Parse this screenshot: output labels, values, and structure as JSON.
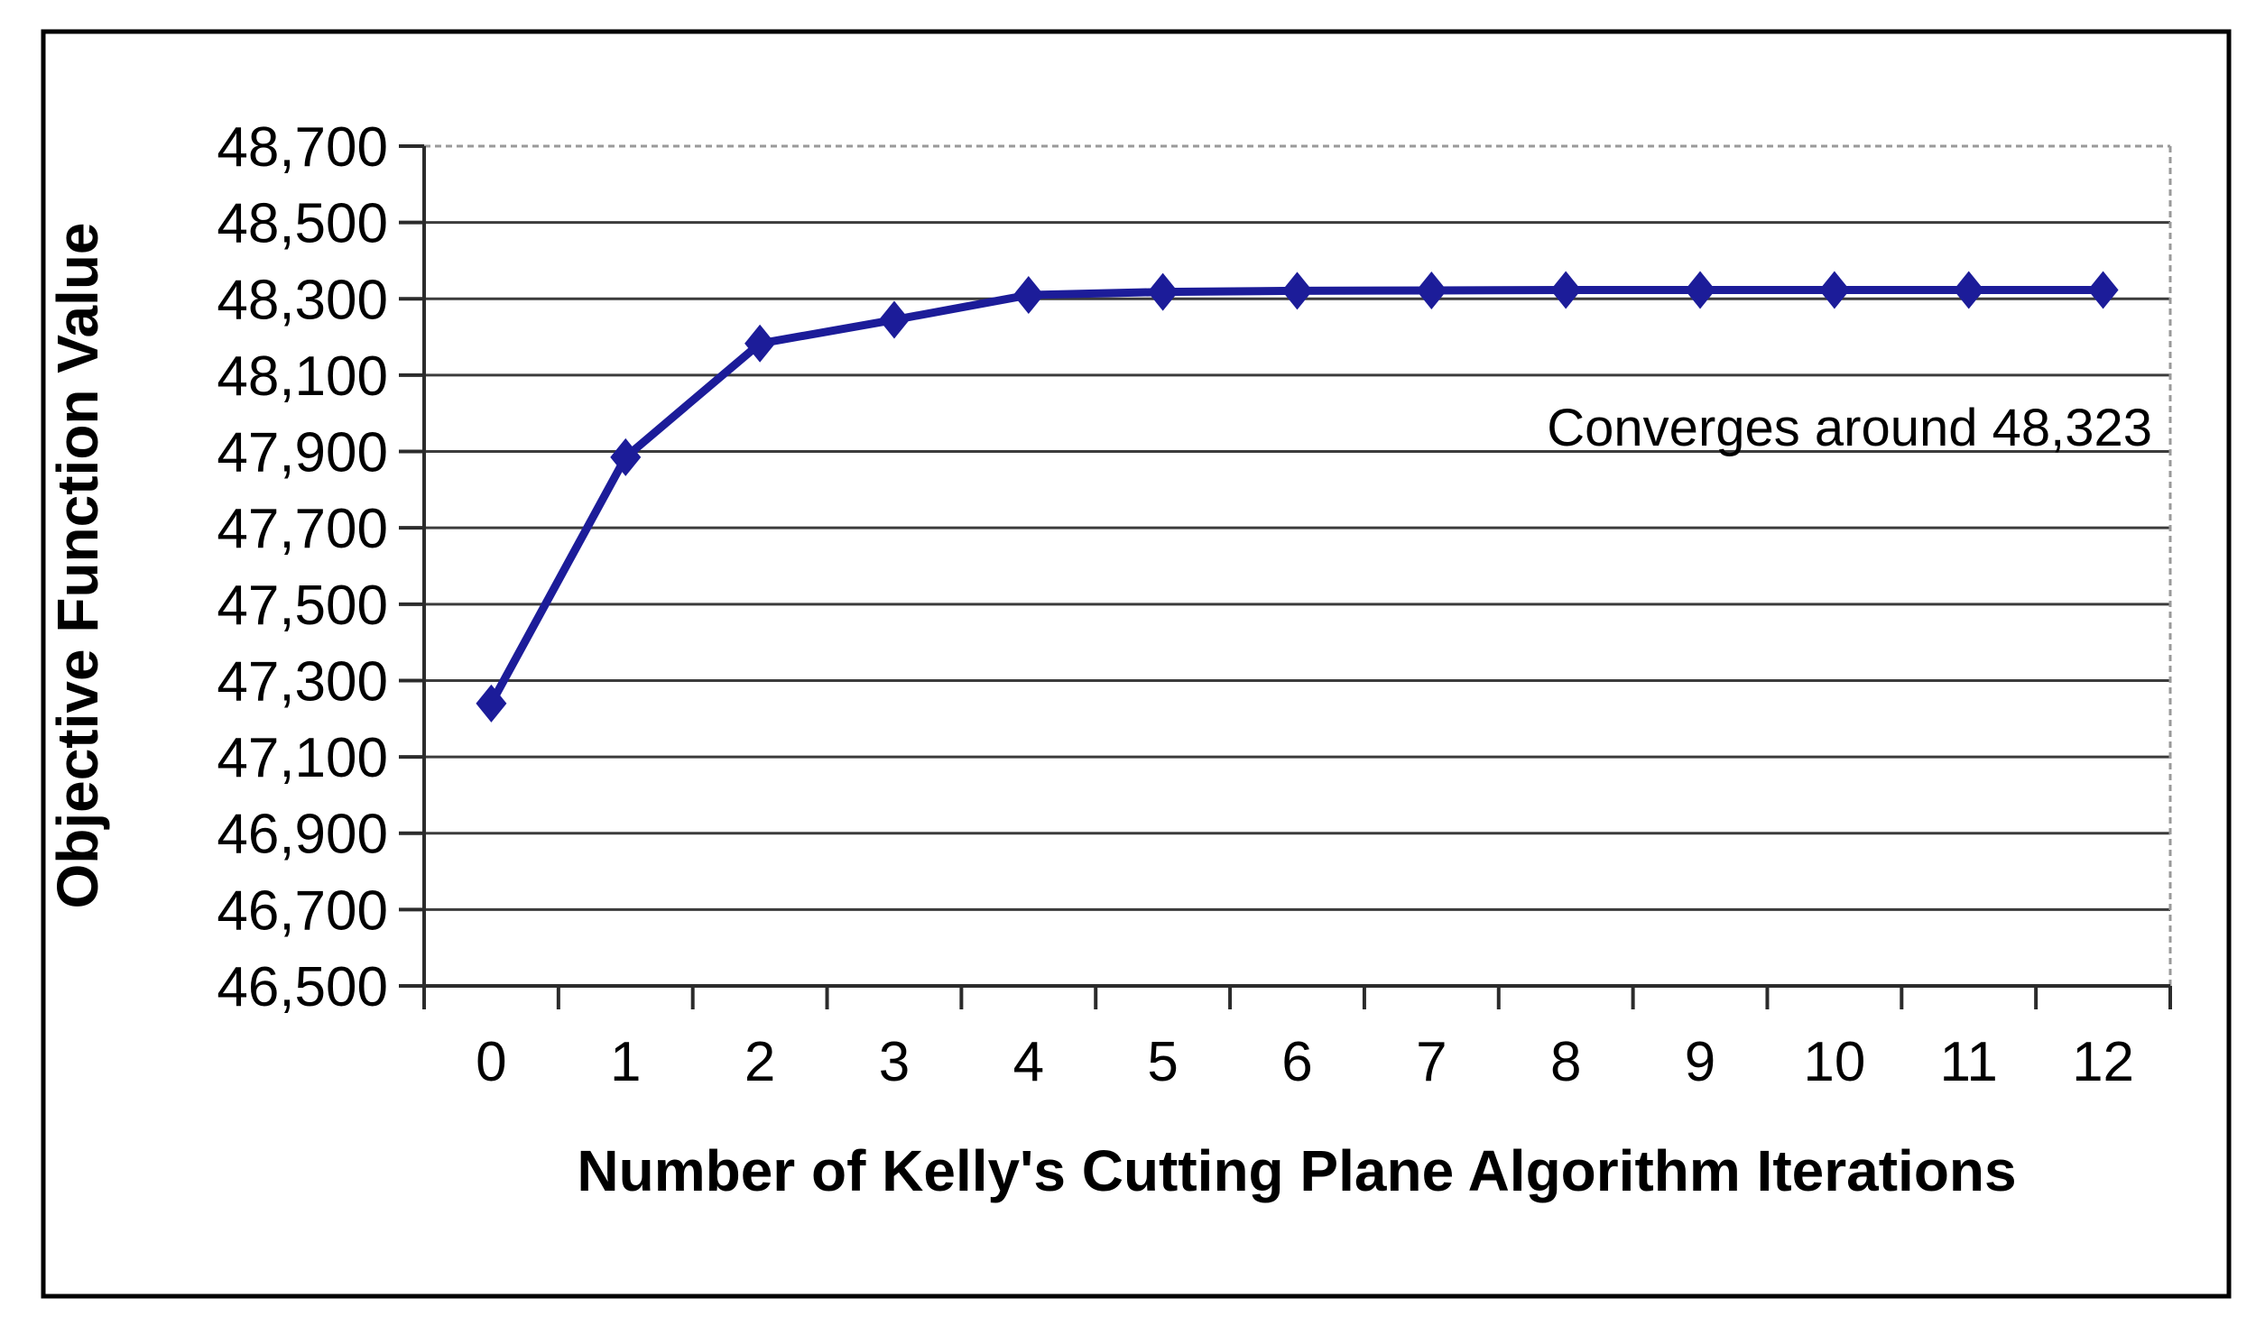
{
  "figure": {
    "background": "#ffffff",
    "border_color": "#000000"
  },
  "chart_data": {
    "type": "line",
    "title": "",
    "xlabel": "Number of Kelly's Cutting Plane Algorithm Iterations",
    "ylabel": "Objective Function Value",
    "x": [
      0,
      1,
      2,
      3,
      4,
      5,
      6,
      7,
      8,
      9,
      10,
      11,
      12
    ],
    "y": [
      47240,
      47885,
      48183,
      48245,
      48310,
      48318,
      48321,
      48322,
      48323,
      48323,
      48323,
      48323,
      48323
    ],
    "xtick_labels": [
      "0",
      "1",
      "2",
      "3",
      "4",
      "5",
      "6",
      "7",
      "8",
      "9",
      "10",
      "11",
      "12"
    ],
    "ytick_labels": [
      "46,500",
      "46,700",
      "46,900",
      "47,100",
      "47,300",
      "47,500",
      "47,700",
      "47,900",
      "48,100",
      "48,300",
      "48,500",
      "48,700"
    ],
    "ylim": [
      46500,
      48700
    ],
    "ytick_step": 200,
    "annotation": "Converges around 48,323",
    "legend": "none",
    "grid": "horizontal",
    "marker": "diamond",
    "colors": {
      "series": "#1c1c99",
      "gridline": "#3c3c3c",
      "axis": "#2b2b2b",
      "plot_border_dashed": "#9a9a9a",
      "figure_border": "#000000"
    }
  }
}
